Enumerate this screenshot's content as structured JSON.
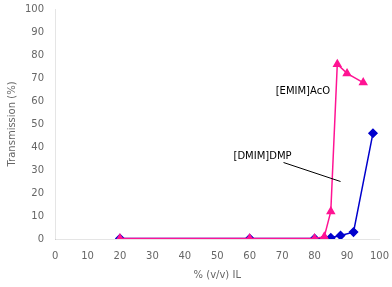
{
  "chart_data": {
    "type": "line",
    "x_label": "% (v/v) IL",
    "y_label": "Transmission (%)",
    "series": [
      {
        "color": "#FF1493",
        "marker": "triangle",
        "x": [
          20,
          60,
          80,
          83,
          85,
          87,
          90,
          95
        ],
        "values": [
          0.2,
          0.2,
          0.2,
          1.0,
          12,
          76,
          72,
          68
        ]
      },
      {
        "color": "#0000CD",
        "marker": "diamond",
        "x": [
          20,
          60,
          80,
          83,
          85,
          88,
          92,
          98
        ],
        "values": [
          0.2,
          0.2,
          0.2,
          0.2,
          0.5,
          1.5,
          3,
          46
        ]
      }
    ],
    "annotations": [
      {
        "text": "[EMIM]AcO",
        "xy": [
          85,
          62
        ],
        "xytext": [
          68,
          63
        ]
      },
      {
        "text": "[DMIM]DMP",
        "xy": [
          88,
          25
        ],
        "xytext": [
          55,
          35
        ]
      }
    ],
    "xlim": [
      0,
      100
    ],
    "ylim": [
      0,
      100
    ],
    "xticks": [
      0,
      10,
      20,
      30,
      40,
      50,
      60,
      70,
      80,
      90,
      100
    ],
    "yticks": [
      0,
      10,
      20,
      30,
      40,
      50,
      60,
      70,
      80,
      90,
      100
    ],
    "grid": false
  }
}
